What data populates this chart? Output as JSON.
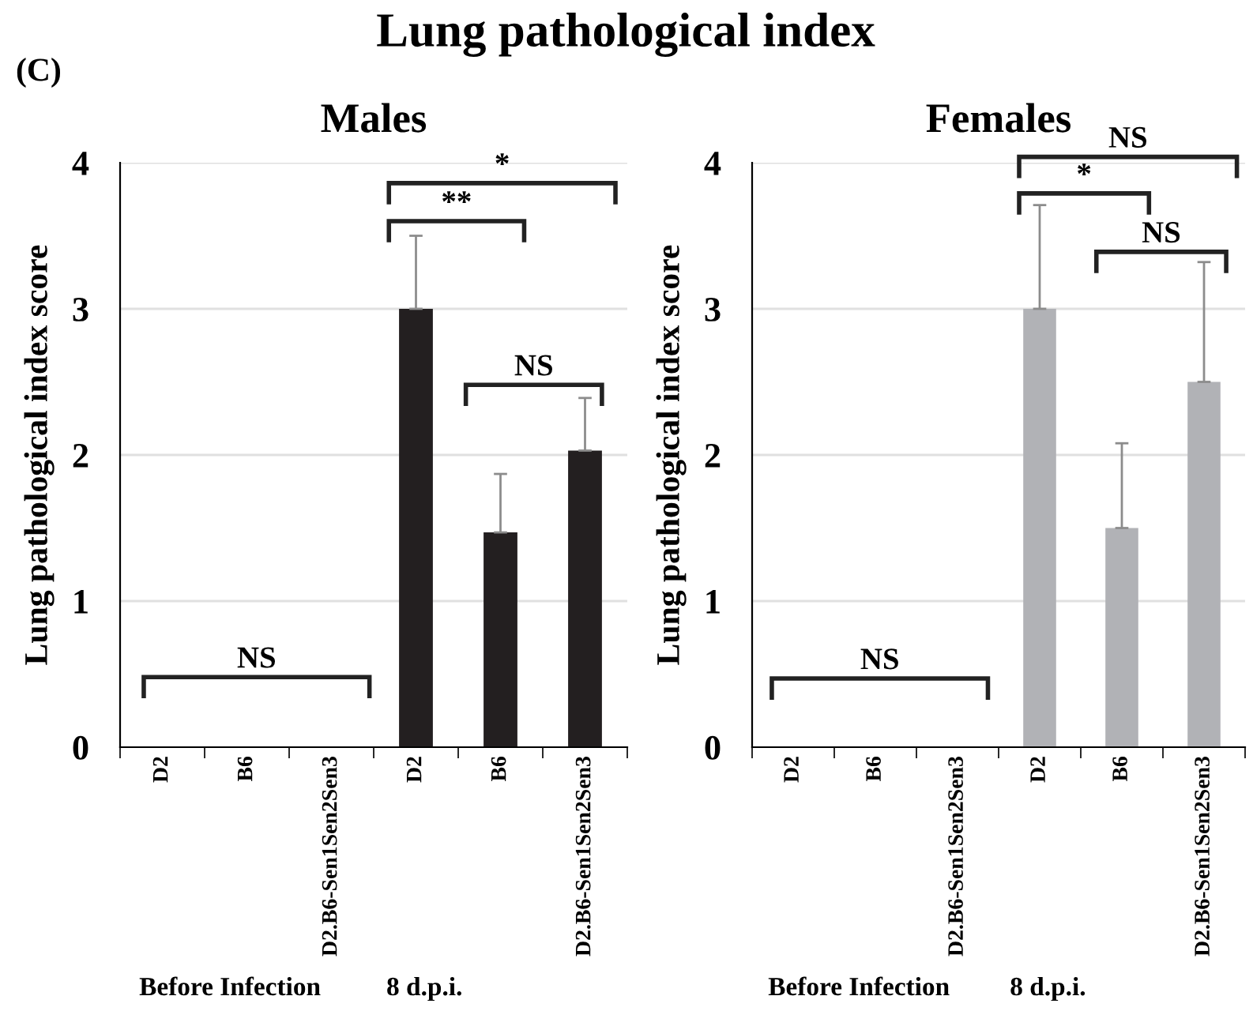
{
  "chart_data": [
    {
      "type": "bar",
      "title": "Males",
      "ylabel": "Lung pathological index score",
      "categories": [
        "D2",
        "B6",
        "D2.B6-Sen1Sen2Sen3",
        "D2",
        "B6",
        "D2.B6-Sen1Sen2Sen3"
      ],
      "values": [
        0,
        0,
        0,
        3.0,
        1.47,
        2.03
      ],
      "errors": [
        null,
        null,
        null,
        [
          3.0,
          3.5
        ],
        [
          1.47,
          1.87
        ],
        [
          2.03,
          2.39
        ]
      ],
      "color": "#231f20",
      "ylim": [
        0,
        4
      ],
      "yticks": [
        0,
        1,
        2,
        3,
        4
      ],
      "grid": "y",
      "annotations": [
        "Lung pathological index",
        "(C)",
        "NS",
        "**",
        "*",
        "NS",
        "Before Infection",
        "8 d.p.i."
      ]
    },
    {
      "type": "bar",
      "title": "Females",
      "ylabel": "Lung pathological index score",
      "categories": [
        "D2",
        "B6",
        "D2.B6-Sen1Sen2Sen3",
        "D2",
        "B6",
        "D2.B6-Sen1Sen2Sen3"
      ],
      "values": [
        0,
        0,
        0,
        3.0,
        1.5,
        2.5
      ],
      "errors": [
        null,
        null,
        null,
        [
          3.0,
          3.71
        ],
        [
          1.5,
          2.08
        ],
        [
          2.5,
          3.32
        ]
      ],
      "color": "#b1b2b6",
      "ylim": [
        0,
        4
      ],
      "yticks": [
        0,
        1,
        2,
        3,
        4
      ],
      "grid": "y",
      "annotations": [
        "NS",
        "*",
        "NS",
        "NS",
        "Before Infection",
        "8 d.p.i."
      ]
    }
  ]
}
